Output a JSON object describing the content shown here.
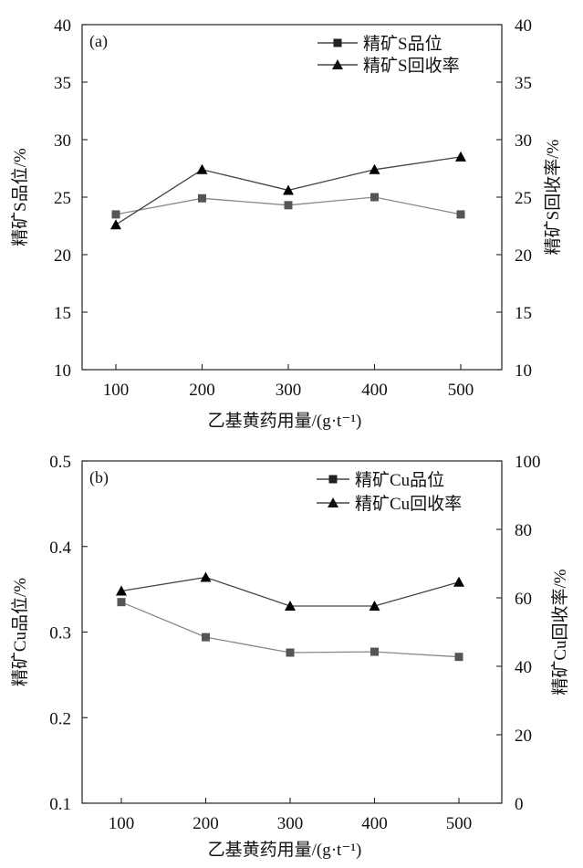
{
  "chart_data": [
    {
      "type": "line",
      "panel_label": "(a)",
      "xlabel": "乙基黄药用量/(g·t⁻¹)",
      "ylabel_left": "精矿S品位/%",
      "ylabel_right": "精矿S回收率/%",
      "x": [
        100,
        200,
        300,
        400,
        500
      ],
      "x_ticks": [
        "100",
        "200",
        "300",
        "400",
        "500"
      ],
      "y_left_ticks": [
        "10",
        "15",
        "20",
        "25",
        "30",
        "35",
        "40"
      ],
      "y_right_ticks": [
        "10",
        "15",
        "20",
        "25",
        "30",
        "35",
        "40"
      ],
      "ylim_left": [
        10,
        40
      ],
      "ylim_right": [
        10,
        40
      ],
      "legend_position": "top-right",
      "series": [
        {
          "name": "精矿S品位",
          "marker": "square",
          "axis": "left",
          "color": "#888888",
          "markerColor": "#555555",
          "values": [
            23.5,
            24.9,
            24.3,
            25.0,
            23.5
          ]
        },
        {
          "name": "精矿S回收率",
          "marker": "triangle",
          "axis": "right",
          "color": "#444444",
          "markerColor": "#000000",
          "values": [
            22.6,
            27.4,
            25.6,
            27.4,
            28.5
          ]
        }
      ]
    },
    {
      "type": "line",
      "panel_label": "(b)",
      "xlabel": "乙基黄药用量/(g·t⁻¹)",
      "ylabel_left": "精矿Cu品位/%",
      "ylabel_right": "精矿Cu回收率/%",
      "x": [
        100,
        200,
        300,
        400,
        500
      ],
      "x_ticks": [
        "100",
        "200",
        "300",
        "400",
        "500"
      ],
      "y_left_ticks": [
        "0.1",
        "0.2",
        "0.3",
        "0.4",
        "0.5"
      ],
      "y_right_ticks": [
        "0",
        "20",
        "40",
        "60",
        "80",
        "100"
      ],
      "ylim_left": [
        0.1,
        0.5
      ],
      "ylim_right": [
        0,
        100
      ],
      "legend_position": "top-right",
      "series": [
        {
          "name": "精矿Cu品位",
          "marker": "square",
          "axis": "left",
          "color": "#888888",
          "markerColor": "#555555",
          "values": [
            0.335,
            0.294,
            0.276,
            0.277,
            0.271
          ]
        },
        {
          "name": "精矿Cu回收率",
          "marker": "triangle",
          "axis": "right",
          "color": "#444444",
          "markerColor": "#000000",
          "values": [
            62.0,
            66.0,
            57.6,
            57.6,
            64.6
          ]
        }
      ]
    }
  ]
}
